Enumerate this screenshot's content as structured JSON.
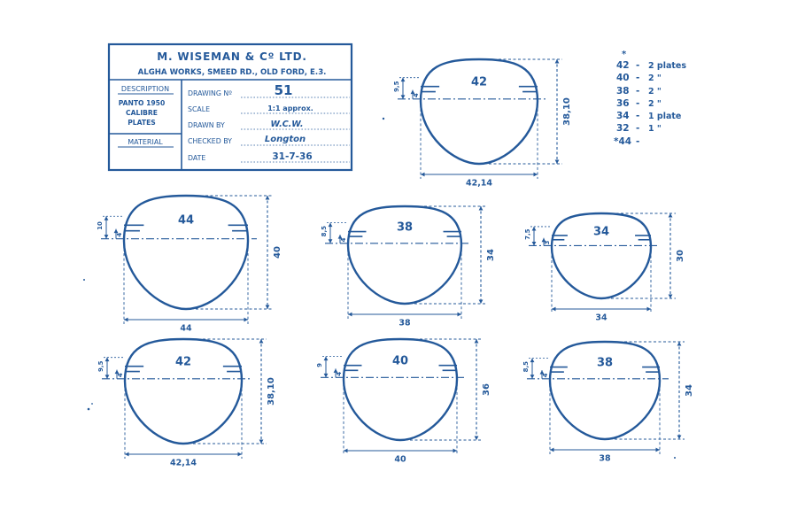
{
  "drawing": {
    "ink_color": "#24599a",
    "paper_color": "#ffffff"
  },
  "title_block": {
    "company": "M. WISEMAN & Cº LTD.",
    "address": "ALGHA WORKS, SMEED RD., OLD FORD, E.3.",
    "description_label": "DESCRIPTION",
    "description_lines": [
      "PANTO 1950",
      "CALIBRE",
      "PLATES"
    ],
    "material_label": "MATERIAL",
    "fields": [
      {
        "label": "DRAWING Nº",
        "value": "51"
      },
      {
        "label": "SCALE",
        "value": "1:1 approx."
      },
      {
        "label": "DRAWN BY",
        "value": "W.C.W."
      },
      {
        "label": "CHECKED BY",
        "value": "Longton"
      },
      {
        "label": "DATE",
        "value": "31-7-36"
      }
    ]
  },
  "plate_counts": {
    "star": "*",
    "rows": [
      {
        "size": "42",
        "count": "2 plates"
      },
      {
        "size": "40",
        "count": "2 \""
      },
      {
        "size": "38",
        "count": "2 \""
      },
      {
        "size": "36",
        "count": "2 \""
      },
      {
        "size": "34",
        "count": "1 plate"
      },
      {
        "size": "32",
        "count": "1 \""
      },
      {
        "size": "*44",
        "count": ""
      }
    ]
  },
  "lenses": [
    {
      "id": "42-top",
      "label": "42",
      "width": "42,14",
      "height": "38,10",
      "offset_big": "9,5",
      "offset_small": "4"
    },
    {
      "id": "44",
      "label": "44",
      "width": "44",
      "height": "40",
      "offset_big": "10",
      "offset_small": "4"
    },
    {
      "id": "38-mid",
      "label": "38",
      "width": "38",
      "height": "34",
      "offset_big": "8,5",
      "offset_small": "4"
    },
    {
      "id": "34",
      "label": "34",
      "width": "34",
      "height": "30",
      "offset_big": "7,5",
      "offset_small": "3"
    },
    {
      "id": "42-bottom",
      "label": "42",
      "width": "42,14",
      "height": "38,10",
      "offset_big": "9,5",
      "offset_small": "4"
    },
    {
      "id": "40",
      "label": "40",
      "width": "40",
      "height": "36",
      "offset_big": "9",
      "offset_small": "4"
    },
    {
      "id": "38-bottom",
      "label": "38",
      "width": "38",
      "height": "34",
      "offset_big": "8,5",
      "offset_small": "4"
    }
  ]
}
